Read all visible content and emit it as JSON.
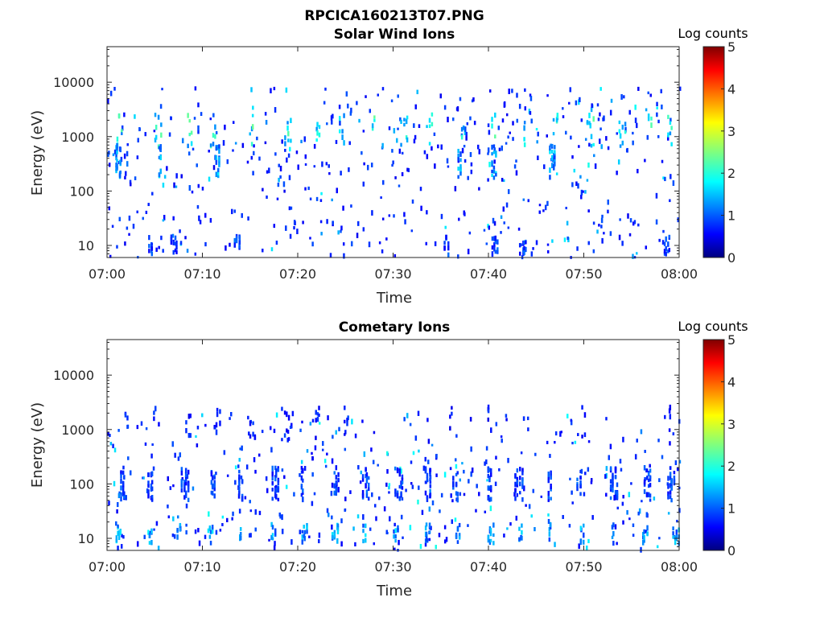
{
  "figure_title": "RPCICA160213T07.PNG",
  "chart_data": [
    {
      "type": "heatmap",
      "title": "Solar Wind Ions",
      "xlabel": "Time",
      "ylabel": "Energy (eV)",
      "x_ticks": [
        "07:00",
        "07:10",
        "07:20",
        "07:30",
        "07:40",
        "07:50",
        "08:00"
      ],
      "x_range_minutes": [
        0,
        60
      ],
      "y_scale": "log",
      "y_ticks": [
        10,
        100,
        1000,
        10000
      ],
      "y_tick_labels": [
        "10",
        "100",
        "1000",
        "10000"
      ],
      "y_range": [
        6,
        45000
      ],
      "colorbar": {
        "label": "Log counts",
        "min": 0,
        "max": 5,
        "ticks": [
          "0",
          "1",
          "2",
          "3",
          "4",
          "5"
        ],
        "colormap": "jet"
      },
      "features": [
        {
          "energy": 1300,
          "count_level": 2,
          "times_min": [
            1.2,
            5.1,
            8.5,
            11.0,
            15.2,
            18.8,
            22.0,
            24.5,
            28.0,
            31.0,
            34.0,
            37.3,
            40.5,
            43.8,
            47.0,
            50.5,
            53.8,
            57.0,
            59.0
          ]
        },
        {
          "energy": 350,
          "count_level": 1.5,
          "times_min": [
            1.0,
            5.5,
            11.5,
            37.0,
            40.5,
            46.5
          ]
        },
        {
          "energy": 10,
          "count_level": 1,
          "times_min": [
            4.5,
            6.8,
            13.5,
            35.5,
            40.5,
            43.5,
            58.5
          ]
        }
      ]
    },
    {
      "type": "heatmap",
      "title": "Cometary Ions",
      "xlabel": "Time",
      "ylabel": "Energy (eV)",
      "x_ticks": [
        "07:00",
        "07:10",
        "07:20",
        "07:30",
        "07:40",
        "07:50",
        "08:00"
      ],
      "x_range_minutes": [
        0,
        60
      ],
      "y_scale": "log",
      "y_ticks": [
        10,
        100,
        1000,
        10000
      ],
      "y_tick_labels": [
        "10",
        "100",
        "1000",
        "10000"
      ],
      "y_range": [
        6,
        45000
      ],
      "colorbar": {
        "label": "Log counts",
        "min": 0,
        "max": 5,
        "ticks": [
          "0",
          "1",
          "2",
          "3",
          "4",
          "5"
        ],
        "colormap": "jet"
      },
      "features": [
        {
          "energy": 12,
          "count_level": 1.5,
          "times_min": [
            1.0,
            4.5,
            7.5,
            10.8,
            14.0,
            17.3,
            20.5,
            23.8,
            27.0,
            30.2,
            33.5,
            36.7,
            40.0,
            43.3,
            46.5,
            49.8,
            53.0,
            56.3,
            59.5
          ]
        },
        {
          "energy": 100,
          "count_level": 1,
          "times_min": [
            1.5,
            4.5,
            8.0,
            11.0,
            14.0,
            17.5,
            20.5,
            24.0,
            27.0,
            30.5,
            33.5,
            36.5,
            40.0,
            43.0,
            46.5,
            49.5,
            53.0,
            56.5,
            59.0
          ]
        },
        {
          "energy": 1300,
          "count_level": 0.8,
          "times_min": [
            2.0,
            5.0,
            8.5,
            11.5,
            15.0,
            18.5,
            22.0,
            25.0,
            36.0,
            40.0,
            50.0,
            59.0
          ]
        }
      ]
    }
  ]
}
